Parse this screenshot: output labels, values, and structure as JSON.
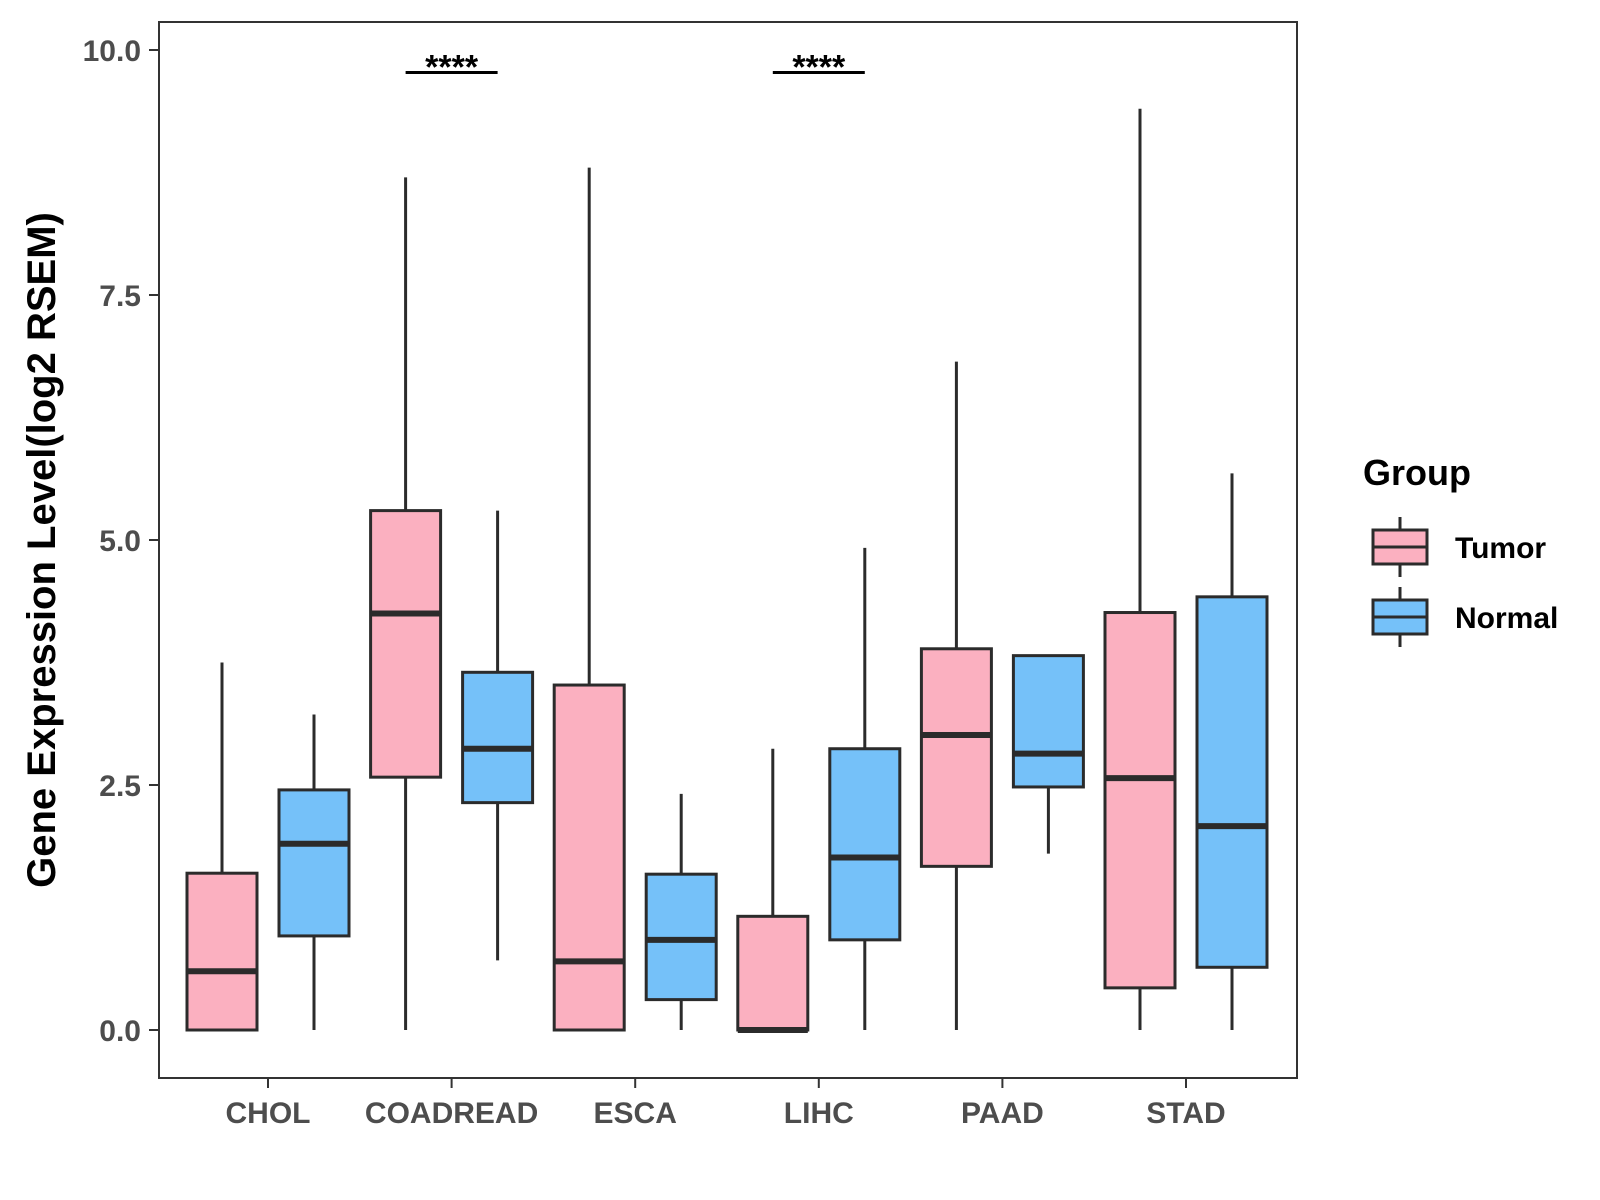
{
  "chart_data": {
    "type": "boxplot",
    "title": "",
    "xlabel": "",
    "ylabel": "Gene Expression Level(log2 RSEM)",
    "ylim": [
      -0.48,
      10.3
    ],
    "yticks": [
      0.0,
      2.5,
      5.0,
      7.5,
      10.0
    ],
    "ytick_labels": [
      "0.0",
      "2.5",
      "5.0",
      "7.5",
      "10.0"
    ],
    "categories": [
      "CHOL",
      "COADREAD",
      "ESCA",
      "LIHC",
      "PAAD",
      "STAD"
    ],
    "legend": {
      "title": "Group",
      "position": "right",
      "entries": [
        {
          "name": "Tumor",
          "color": "#fbb0c0"
        },
        {
          "name": "Normal",
          "color": "#75c1f9"
        }
      ]
    },
    "series": [
      {
        "name": "Tumor",
        "color": "#fbb0c0",
        "boxes": [
          {
            "min": 0.0,
            "q1": 0.0,
            "median": 0.6,
            "q3": 1.6,
            "max": 3.75
          },
          {
            "min": 0.0,
            "q1": 2.58,
            "median": 4.25,
            "q3": 5.3,
            "max": 8.7
          },
          {
            "min": 0.0,
            "q1": 0.0,
            "median": 0.7,
            "q3": 3.52,
            "max": 8.8
          },
          {
            "min": 0.0,
            "q1": 0.0,
            "median": 0.0,
            "q3": 1.16,
            "max": 2.87
          },
          {
            "min": 0.0,
            "q1": 1.67,
            "median": 3.01,
            "q3": 3.89,
            "max": 6.82
          },
          {
            "min": 0.0,
            "q1": 0.43,
            "median": 2.57,
            "q3": 4.26,
            "max": 9.4
          }
        ]
      },
      {
        "name": "Normal",
        "color": "#75c1f9",
        "boxes": [
          {
            "min": 0.0,
            "q1": 0.96,
            "median": 1.9,
            "q3": 2.45,
            "max": 3.22
          },
          {
            "min": 0.71,
            "q1": 2.32,
            "median": 2.87,
            "q3": 3.65,
            "max": 5.3
          },
          {
            "min": 0.0,
            "q1": 0.31,
            "median": 0.92,
            "q3": 1.59,
            "max": 2.41
          },
          {
            "min": 0.0,
            "q1": 0.92,
            "median": 1.76,
            "q3": 2.87,
            "max": 4.92
          },
          {
            "min": 1.8,
            "q1": 2.48,
            "median": 2.82,
            "q3": 3.82,
            "max": 3.82
          },
          {
            "min": 0.0,
            "q1": 0.64,
            "median": 2.08,
            "q3": 4.42,
            "max": 5.68
          }
        ]
      }
    ],
    "annotations": [
      {
        "category": "COADREAD",
        "text": "****",
        "y": 9.77
      },
      {
        "category": "LIHC",
        "text": "****",
        "y": 9.77
      }
    ]
  }
}
